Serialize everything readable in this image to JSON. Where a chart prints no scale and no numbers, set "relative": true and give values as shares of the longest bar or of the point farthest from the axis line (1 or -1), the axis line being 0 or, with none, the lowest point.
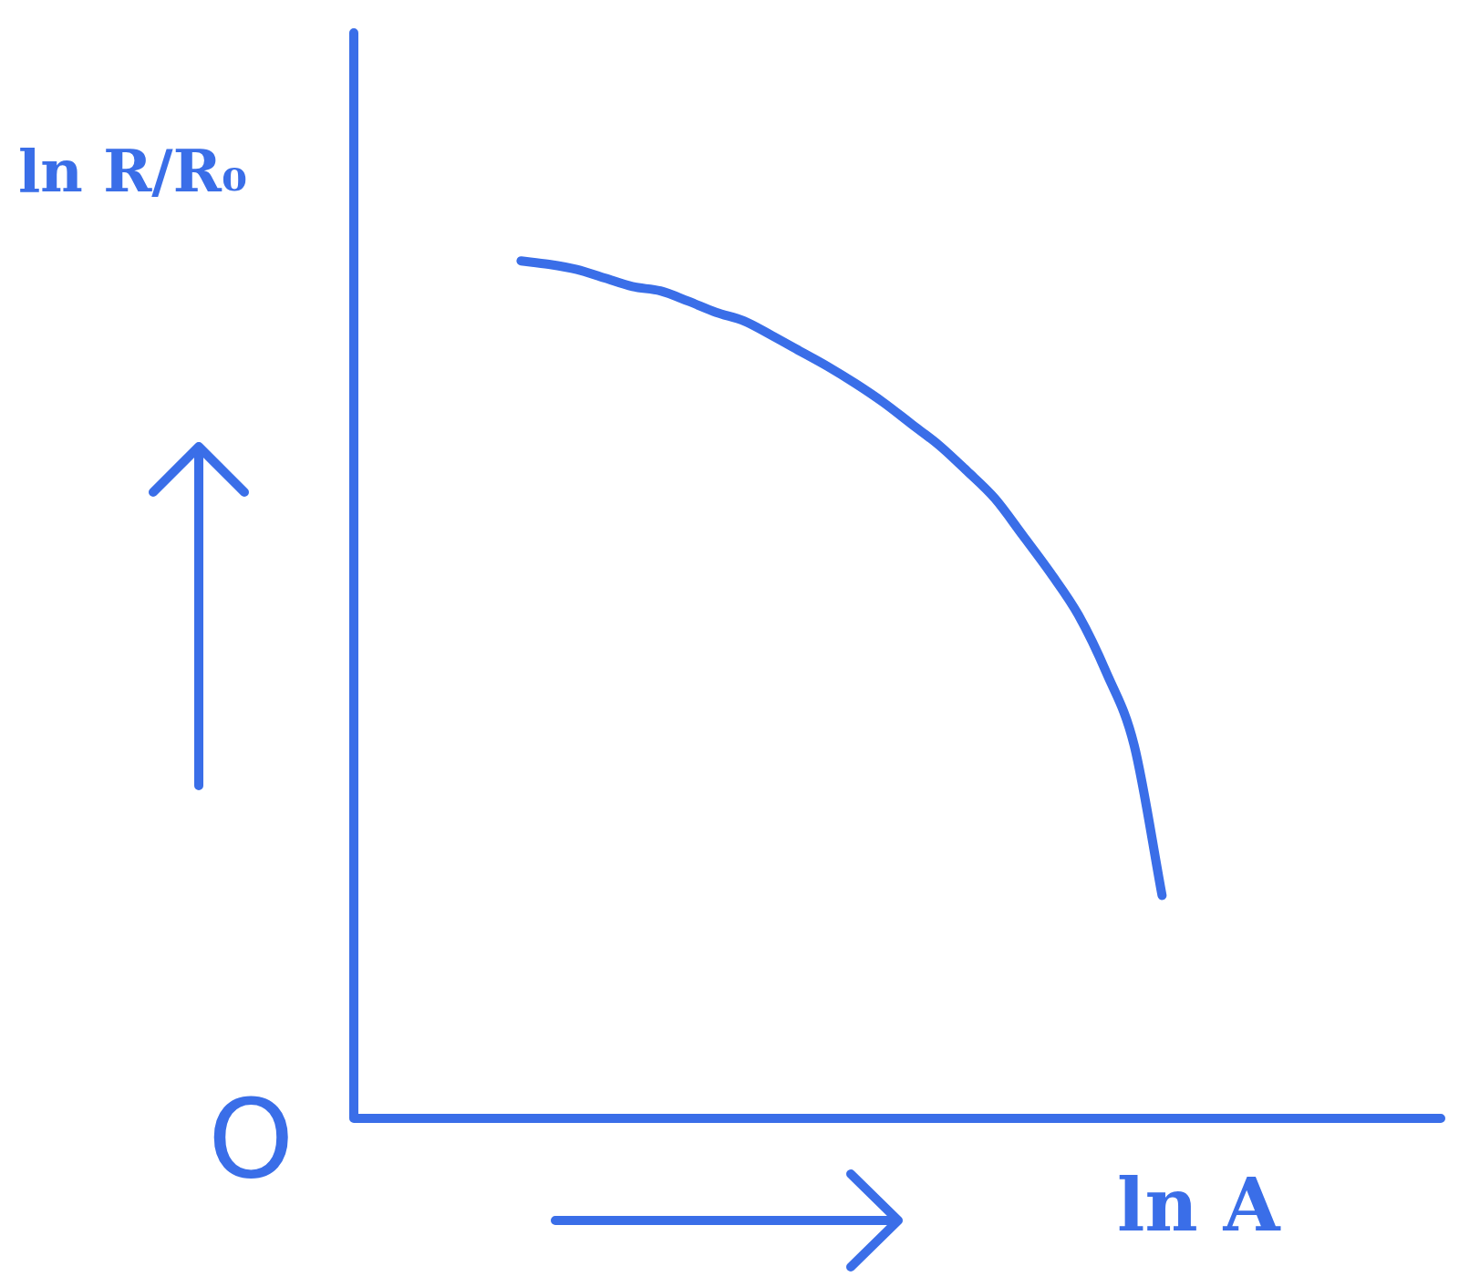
{
  "chart_data": {
    "type": "line",
    "relative": true,
    "xlabel": "ln A",
    "ylabel": "ln R/R₀",
    "annotations": [
      "O"
    ],
    "color": "#3a6ee8",
    "marker": "none",
    "line_style": "solid",
    "legend": false,
    "categories": [
      null,
      null,
      null,
      null,
      null,
      null,
      null,
      null,
      null,
      null,
      null,
      null,
      null,
      null,
      null,
      null,
      null,
      null,
      null,
      null,
      null,
      null,
      null,
      null,
      null,
      null,
      null,
      null,
      null,
      null,
      null,
      null,
      null,
      null,
      null,
      null,
      null,
      null,
      null,
      null
    ],
    "values": [
      null,
      null,
      null,
      null,
      null,
      null,
      1.0,
      0.996,
      0.99,
      0.98,
      0.97,
      0.965,
      0.953,
      0.94,
      0.93,
      0.913,
      0.895,
      0.877,
      0.857,
      0.835,
      0.81,
      0.785,
      0.755,
      0.723,
      0.68,
      0.636,
      0.587,
      0.52,
      0.435,
      0.26,
      null,
      null,
      null,
      null,
      null,
      null,
      null,
      null,
      null,
      null
    ]
  }
}
